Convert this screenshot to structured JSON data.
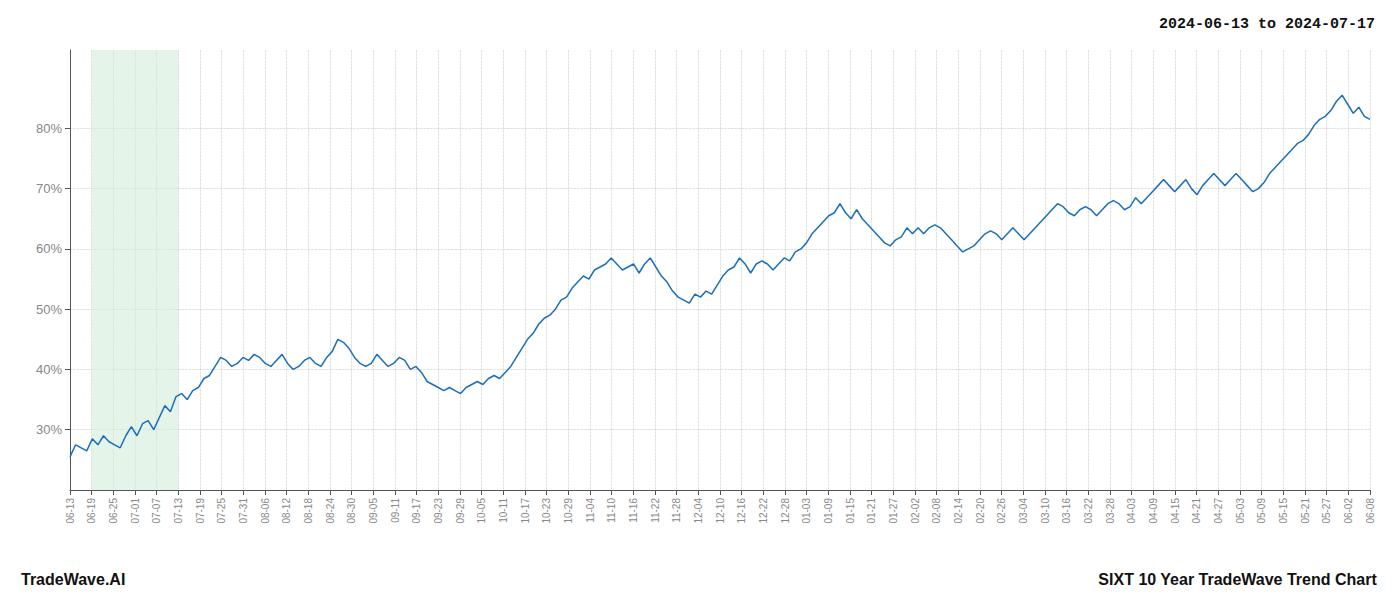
{
  "chart_data": {
    "type": "line",
    "title": "SIXT 10 Year TradeWave Trend Chart",
    "subtitle": "2024-06-13 to 2024-07-17",
    "annotations": [
      "TradeWave.AI"
    ],
    "color": "#1a6fba",
    "grid": true,
    "highlight": {
      "range": [
        1,
        5
      ],
      "color": "#d4edda"
    },
    "xlim": [
      0,
      60
    ],
    "xticks": [
      {
        "value": 0,
        "label": "06-13"
      },
      {
        "value": 1,
        "label": "06-19"
      },
      {
        "value": 2,
        "label": "06-25"
      },
      {
        "value": 3,
        "label": "07-01"
      },
      {
        "value": 4,
        "label": "07-07"
      },
      {
        "value": 5,
        "label": "07-13"
      },
      {
        "value": 6,
        "label": "07-19"
      },
      {
        "value": 7,
        "label": "07-25"
      },
      {
        "value": 8,
        "label": "07-31"
      },
      {
        "value": 9,
        "label": "08-06"
      },
      {
        "value": 10,
        "label": "08-12"
      },
      {
        "value": 11,
        "label": "08-18"
      },
      {
        "value": 12,
        "label": "08-24"
      },
      {
        "value": 13,
        "label": "08-30"
      },
      {
        "value": 14,
        "label": "09-05"
      },
      {
        "value": 15,
        "label": "09-11"
      },
      {
        "value": 16,
        "label": "09-17"
      },
      {
        "value": 17,
        "label": "09-23"
      },
      {
        "value": 18,
        "label": "09-29"
      },
      {
        "value": 19,
        "label": "10-05"
      },
      {
        "value": 20,
        "label": "10-11"
      },
      {
        "value": 21,
        "label": "10-17"
      },
      {
        "value": 22,
        "label": "10-23"
      },
      {
        "value": 23,
        "label": "10-29"
      },
      {
        "value": 24,
        "label": "11-04"
      },
      {
        "value": 25,
        "label": "11-10"
      },
      {
        "value": 26,
        "label": "11-16"
      },
      {
        "value": 27,
        "label": "11-22"
      },
      {
        "value": 28,
        "label": "11-28"
      },
      {
        "value": 29,
        "label": "12-04"
      },
      {
        "value": 30,
        "label": "12-10"
      },
      {
        "value": 31,
        "label": "12-16"
      },
      {
        "value": 32,
        "label": "12-22"
      },
      {
        "value": 33,
        "label": "12-28"
      },
      {
        "value": 34,
        "label": "01-03"
      },
      {
        "value": 35,
        "label": "01-09"
      },
      {
        "value": 36,
        "label": "01-15"
      },
      {
        "value": 37,
        "label": "01-21"
      },
      {
        "value": 38,
        "label": "01-27"
      },
      {
        "value": 39,
        "label": "02-02"
      },
      {
        "value": 40,
        "label": "02-08"
      },
      {
        "value": 41,
        "label": "02-14"
      },
      {
        "value": 42,
        "label": "02-20"
      },
      {
        "value": 43,
        "label": "02-26"
      },
      {
        "value": 44,
        "label": "03-04"
      },
      {
        "value": 45,
        "label": "03-10"
      },
      {
        "value": 46,
        "label": "03-16"
      },
      {
        "value": 47,
        "label": "03-22"
      },
      {
        "value": 48,
        "label": "03-28"
      },
      {
        "value": 49,
        "label": "04-03"
      },
      {
        "value": 50,
        "label": "04-09"
      },
      {
        "value": 51,
        "label": "04-15"
      },
      {
        "value": 52,
        "label": "04-21"
      },
      {
        "value": 53,
        "label": "04-27"
      },
      {
        "value": 54,
        "label": "05-03"
      },
      {
        "value": 55,
        "label": "05-09"
      },
      {
        "value": 56,
        "label": "05-15"
      },
      {
        "value": 57,
        "label": "05-21"
      },
      {
        "value": 58,
        "label": "05-27"
      },
      {
        "value": 59,
        "label": "06-02"
      },
      {
        "value": 60,
        "label": "06-08"
      }
    ],
    "ylim": [
      20,
      93
    ],
    "yticks": [
      {
        "value": 30,
        "label": "30%"
      },
      {
        "value": 40,
        "label": "40%"
      },
      {
        "value": 50,
        "label": "50%"
      },
      {
        "value": 60,
        "label": "60%"
      },
      {
        "value": 70,
        "label": "70%"
      },
      {
        "value": 80,
        "label": "80%"
      }
    ],
    "values": [
      25.5,
      27.5,
      27.0,
      26.5,
      28.5,
      27.5,
      29.0,
      28.0,
      27.5,
      27.0,
      29.0,
      30.5,
      29.0,
      31.0,
      31.5,
      30.0,
      32.0,
      34.0,
      33.0,
      35.5,
      36.0,
      35.0,
      36.5,
      37.0,
      38.5,
      39.0,
      40.5,
      42.0,
      41.5,
      40.5,
      41.0,
      42.0,
      41.5,
      42.5,
      42.0,
      41.0,
      40.5,
      41.5,
      42.5,
      41.0,
      40.0,
      40.5,
      41.5,
      42.0,
      41.0,
      40.5,
      42.0,
      43.0,
      45.0,
      44.5,
      43.5,
      42.0,
      41.0,
      40.5,
      41.0,
      42.5,
      41.5,
      40.5,
      41.0,
      42.0,
      41.5,
      40.0,
      40.5,
      39.5,
      38.0,
      37.5,
      37.0,
      36.5,
      37.0,
      36.5,
      36.0,
      37.0,
      37.5,
      38.0,
      37.5,
      38.5,
      39.0,
      38.5,
      39.5,
      40.5,
      42.0,
      43.5,
      45.0,
      46.0,
      47.5,
      48.5,
      49.0,
      50.0,
      51.5,
      52.0,
      53.5,
      54.5,
      55.5,
      55.0,
      56.5,
      57.0,
      57.5,
      58.5,
      57.5,
      56.5,
      57.0,
      57.5,
      56.0,
      57.5,
      58.5,
      57.0,
      55.5,
      54.5,
      53.0,
      52.0,
      51.5,
      51.0,
      52.5,
      52.0,
      53.0,
      52.5,
      54.0,
      55.5,
      56.5,
      57.0,
      58.5,
      57.5,
      56.0,
      57.5,
      58.0,
      57.5,
      56.5,
      57.5,
      58.5,
      58.0,
      59.5,
      60.0,
      61.0,
      62.5,
      63.5,
      64.5,
      65.5,
      66.0,
      67.5,
      66.0,
      65.0,
      66.5,
      65.0,
      64.0,
      63.0,
      62.0,
      61.0,
      60.5,
      61.5,
      62.0,
      63.5,
      62.5,
      63.5,
      62.5,
      63.5,
      64.0,
      63.5,
      62.5,
      61.5,
      60.5,
      59.5,
      60.0,
      60.5,
      61.5,
      62.5,
      63.0,
      62.5,
      61.5,
      62.5,
      63.5,
      62.5,
      61.5,
      62.5,
      63.5,
      64.5,
      65.5,
      66.5,
      67.5,
      67.0,
      66.0,
      65.5,
      66.5,
      67.0,
      66.5,
      65.5,
      66.5,
      67.5,
      68.0,
      67.5,
      66.5,
      67.0,
      68.5,
      67.5,
      68.5,
      69.5,
      70.5,
      71.5,
      70.5,
      69.5,
      70.5,
      71.5,
      70.0,
      69.0,
      70.5,
      71.5,
      72.5,
      71.5,
      70.5,
      71.5,
      72.5,
      71.5,
      70.5,
      69.5,
      70.0,
      71.0,
      72.5,
      73.5,
      74.5,
      75.5,
      76.5,
      77.5,
      78.0,
      79.0,
      80.5,
      81.5,
      82.0,
      83.0,
      84.5,
      85.5,
      84.0,
      82.5,
      83.5,
      82.0,
      81.5
    ]
  }
}
